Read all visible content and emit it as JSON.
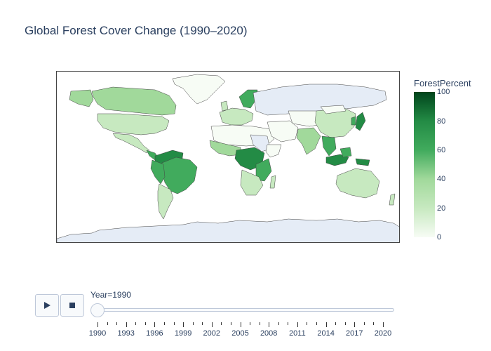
{
  "title": "Global Forest Cover Change (1990–2020)",
  "colorbar": {
    "title": "ForestPercent",
    "ticks": [
      "100",
      "80",
      "60",
      "40",
      "20",
      "0"
    ],
    "colorscale": [
      "#f7fcf5",
      "#c7e9c0",
      "#a1d99b",
      "#41ab5d",
      "#238b45",
      "#00441b"
    ],
    "no_data_color": "#e5ecf6"
  },
  "slider": {
    "current_label": "Year=1990",
    "current_value": 1990,
    "min": 1990,
    "max": 2020,
    "tick_labels": [
      "1990",
      "1993",
      "1996",
      "1999",
      "2002",
      "2005",
      "2008",
      "2011",
      "2014",
      "2017",
      "2020"
    ]
  },
  "controls": {
    "play_icon": "play-icon",
    "stop_icon": "stop-icon"
  }
}
